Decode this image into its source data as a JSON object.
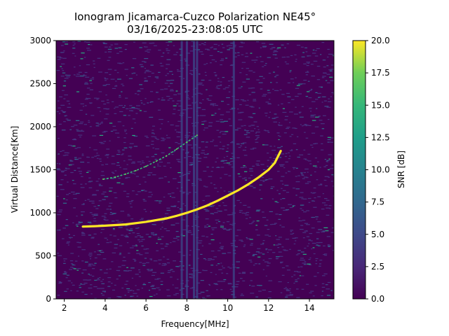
{
  "chart_data": {
    "type": "heatmap",
    "title": "Ionogram Jicamarca-Cuzco Polarization NE45°",
    "subtitle": "03/16/2025-23:08:05 UTC",
    "xlabel": "Frequency[MHz]",
    "ylabel": "Virtual Distance[Km]",
    "xlim": [
      1.6,
      15.2
    ],
    "ylim": [
      0,
      3000
    ],
    "xticks": [
      2,
      4,
      6,
      8,
      10,
      12,
      14
    ],
    "yticks": [
      0,
      500,
      1000,
      1500,
      2000,
      2500,
      3000
    ],
    "colorbar": {
      "label": "SNR [dB]",
      "range": [
        0.0,
        20.0
      ],
      "ticks": [
        "0.0",
        "2.5",
        "5.0",
        "7.5",
        "10.0",
        "12.5",
        "15.0",
        "17.5",
        "20.0"
      ],
      "colormap": "viridis"
    },
    "traces": [
      {
        "name": "",
        "description_points_freq_mhz_vs_km": [
          [
            2.9,
            840
          ],
          [
            3.5,
            845
          ],
          [
            4.0,
            850
          ],
          [
            5.0,
            865
          ],
          [
            6.0,
            895
          ],
          [
            7.0,
            935
          ],
          [
            7.5,
            965
          ],
          [
            8.0,
            1000
          ],
          [
            8.5,
            1040
          ],
          [
            9.0,
            1085
          ],
          [
            9.5,
            1140
          ],
          [
            10.0,
            1200
          ],
          [
            10.5,
            1260
          ],
          [
            11.0,
            1330
          ],
          [
            11.5,
            1410
          ],
          [
            12.0,
            1500
          ],
          [
            12.3,
            1580
          ],
          [
            12.6,
            1720
          ]
        ]
      },
      {
        "name": "",
        "description_points_freq_mhz_vs_km": [
          [
            3.9,
            1390
          ],
          [
            4.5,
            1415
          ],
          [
            5.0,
            1450
          ],
          [
            5.5,
            1490
          ],
          [
            6.0,
            1540
          ],
          [
            6.5,
            1600
          ],
          [
            7.0,
            1660
          ],
          [
            7.5,
            1740
          ],
          [
            8.0,
            1820
          ],
          [
            8.5,
            1900
          ]
        ]
      }
    ],
    "interference_bands_mhz": [
      7.75,
      8.0,
      8.35,
      8.5,
      10.3
    ]
  }
}
